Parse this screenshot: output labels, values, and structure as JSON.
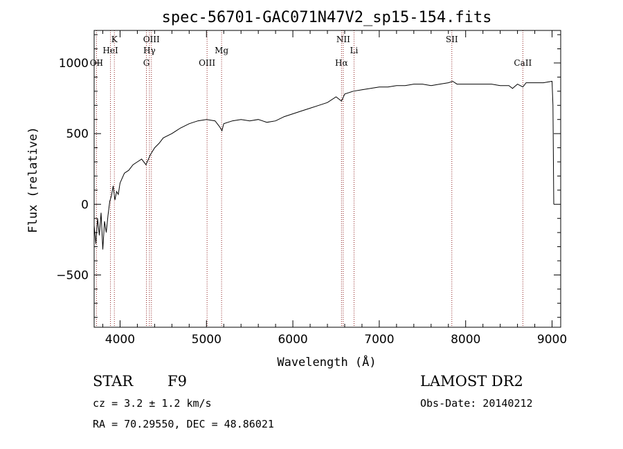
{
  "chart_data": {
    "type": "line",
    "title": "spec-56701-GAC071N47V2_sp15-154.fits",
    "xlabel": "Wavelength (Å)",
    "ylabel": "Flux (relative)",
    "xlim": [
      3700,
      9100
    ],
    "ylim": [
      -870,
      1230
    ],
    "xticks": [
      4000,
      5000,
      6000,
      7000,
      8000,
      9000
    ],
    "yticks": [
      -500,
      0,
      500,
      1000
    ],
    "grid": false,
    "line_color": "#000000",
    "marker_color": "#8b1a1a",
    "lines": [
      {
        "name": "OII",
        "wavelength": 3727,
        "row": 3
      },
      {
        "name": "HeI",
        "wavelength": 3889,
        "row": 2
      },
      {
        "name": "K",
        "wavelength": 3934,
        "row": 1
      },
      {
        "name": "OIII",
        "wavelength": 4363,
        "row": 1
      },
      {
        "name": "Hγ",
        "wavelength": 4340,
        "row": 2
      },
      {
        "name": "G",
        "wavelength": 4305,
        "row": 3
      },
      {
        "name": "OIII",
        "wavelength": 5007,
        "row": 3
      },
      {
        "name": "Mg",
        "wavelength": 5175,
        "row": 2
      },
      {
        "name": "NII",
        "wavelength": 6583,
        "row": 1
      },
      {
        "name": "Li",
        "wavelength": 6708,
        "row": 2
      },
      {
        "name": "Hα",
        "wavelength": 6563,
        "row": 3
      },
      {
        "name": "SII",
        "wavelength": 7840,
        "row": 1
      },
      {
        "name": "CaII",
        "wavelength": 8662,
        "row": 3
      }
    ],
    "series": [
      {
        "x": [
          3700,
          3720,
          3740,
          3760,
          3780,
          3800,
          3820,
          3840,
          3860,
          3880,
          3900,
          3920,
          3940,
          3960,
          3980,
          4000,
          4050,
          4100,
          4150,
          4200,
          4250,
          4300,
          4350,
          4400,
          4450,
          4500,
          4600,
          4700,
          4800,
          4900,
          5000,
          5100,
          5150,
          5180,
          5200,
          5300,
          5400,
          5500,
          5600,
          5700,
          5800,
          5900,
          6000,
          6100,
          6200,
          6300,
          6400,
          6500,
          6563,
          6600,
          6700,
          6800,
          6900,
          7000,
          7100,
          7200,
          7300,
          7400,
          7500,
          7600,
          7700,
          7800,
          7850,
          7900,
          8000,
          8100,
          8200,
          8300,
          8400,
          8500,
          8542,
          8600,
          8662,
          8700,
          8800,
          8900,
          9000,
          9010,
          9020
        ],
        "y": [
          -150,
          -280,
          -100,
          -220,
          -60,
          -320,
          -120,
          -200,
          -80,
          20,
          60,
          130,
          30,
          90,
          70,
          150,
          220,
          240,
          280,
          300,
          320,
          280,
          350,
          400,
          430,
          470,
          500,
          540,
          570,
          590,
          600,
          590,
          550,
          520,
          570,
          590,
          600,
          590,
          600,
          580,
          590,
          620,
          640,
          660,
          680,
          700,
          720,
          760,
          730,
          780,
          800,
          810,
          820,
          830,
          830,
          840,
          840,
          850,
          850,
          840,
          850,
          860,
          870,
          850,
          850,
          850,
          850,
          850,
          840,
          840,
          820,
          850,
          830,
          860,
          860,
          860,
          870,
          700,
          0
        ]
      }
    ],
    "object_class": "STAR",
    "subclass": "F9",
    "survey": "LAMOST DR2",
    "cz": "cz = 3.2 ± 1.2 km/s",
    "obs_date": "Obs-Date: 20140212",
    "coords": "RA =  70.29550, DEC =  48.86021"
  }
}
